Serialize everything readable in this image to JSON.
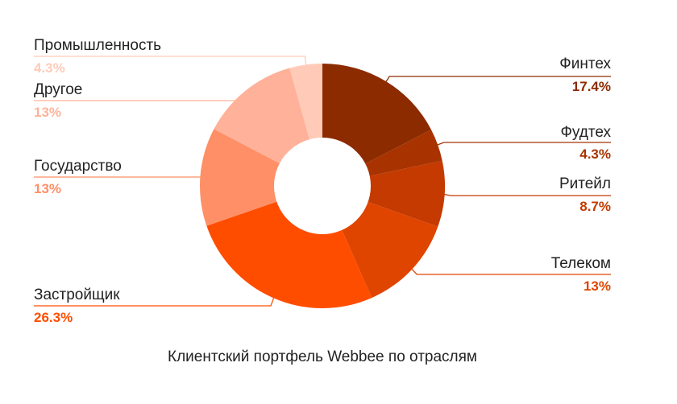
{
  "chart_data": {
    "type": "pie",
    "title": "Клиентский портфель Webbee по отраслям",
    "slices": [
      {
        "name": "Финтех",
        "value": 17.4,
        "label": "17.4%",
        "color": "#8c2b00"
      },
      {
        "name": "Фудтех",
        "value": 4.3,
        "label": "4.3%",
        "color": "#a83300"
      },
      {
        "name": "Ритейл",
        "value": 8.7,
        "label": "8.7%",
        "color": "#c43a00"
      },
      {
        "name": "Телеком",
        "value": 13,
        "label": "13%",
        "color": "#e04500"
      },
      {
        "name": "Застройщик",
        "value": 26.3,
        "label": "26.3%",
        "color": "#ff4d00"
      },
      {
        "name": "Государство",
        "value": 13,
        "label": "13%",
        "color": "#ff8f66"
      },
      {
        "name": "Другое",
        "value": 13,
        "label": "13%",
        "color": "#ffb299"
      },
      {
        "name": "Промышленность",
        "value": 4.3,
        "label": "4.3%",
        "color": "#ffcbb8"
      }
    ]
  }
}
